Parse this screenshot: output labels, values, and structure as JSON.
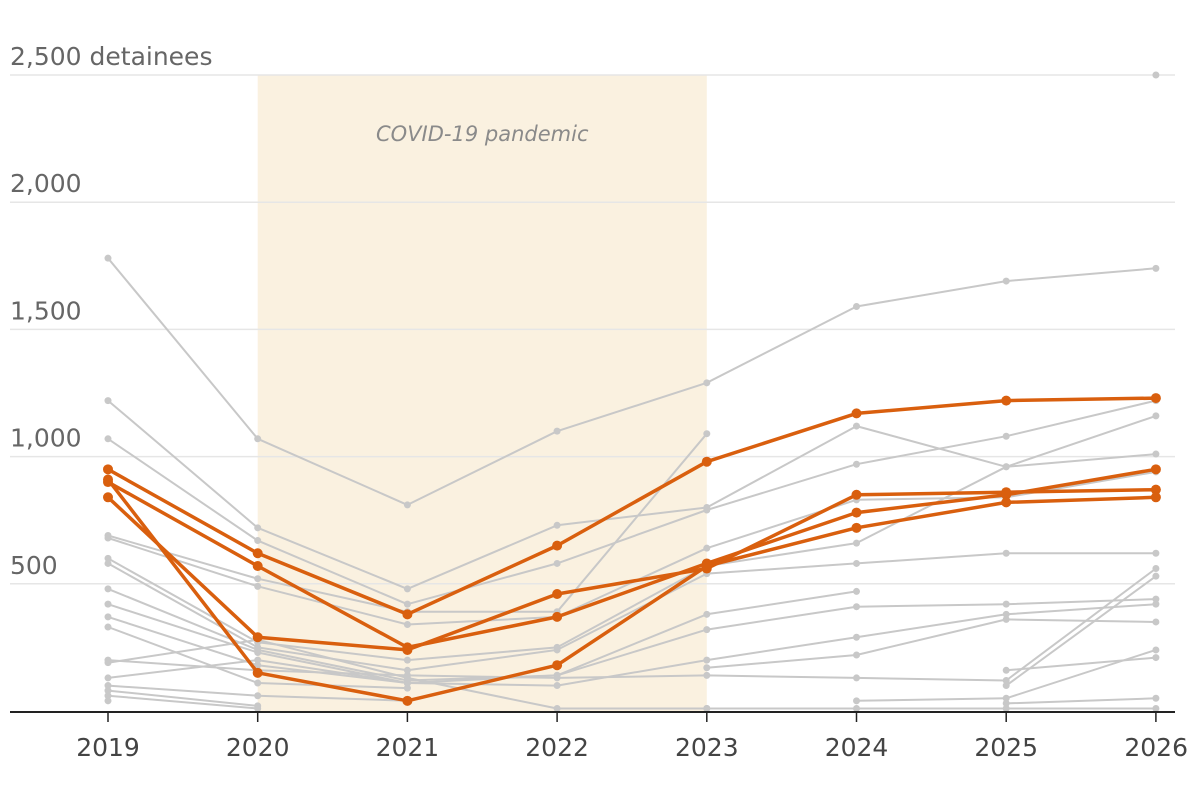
{
  "chart_data": {
    "type": "line",
    "title": "",
    "xlabel": "",
    "ylabel": "",
    "ylim": [
      0,
      2500
    ],
    "y_ticks": [
      {
        "value": 500,
        "label": "500"
      },
      {
        "value": 1000,
        "label": "1,000"
      },
      {
        "value": 1500,
        "label": "1,500"
      },
      {
        "value": 2000,
        "label": "2,000"
      },
      {
        "value": 2500,
        "label": "2,500 detainees"
      }
    ],
    "x": [
      2019,
      2020,
      2021,
      2022,
      2023,
      2024,
      2025,
      2026
    ],
    "x_tick_labels": [
      "2019",
      "2020",
      "2021",
      "2022",
      "2023",
      "2024",
      "2025",
      "2026"
    ],
    "grid": true,
    "shaded_period": {
      "start": 2020,
      "end": 2023,
      "label": "COVID-19 pandemic",
      "color": "#faf1e0"
    },
    "colors": {
      "highlight": "#d95f0e",
      "background_series": "#c8c8c8",
      "axis": "#222222",
      "grid": "#e6e6e6"
    },
    "series": [
      {
        "highlight": false,
        "values": [
          1780,
          1070,
          810,
          1100,
          1290,
          1590,
          1690,
          1740
        ]
      },
      {
        "highlight": false,
        "values": [
          1220,
          720,
          480,
          730,
          800,
          1120,
          960,
          1010
        ]
      },
      {
        "highlight": false,
        "values": [
          1070,
          670,
          420,
          580,
          790,
          970,
          1080,
          1220
        ]
      },
      {
        "highlight": false,
        "values": [
          690,
          520,
          390,
          390,
          1090,
          null,
          null,
          null
        ]
      },
      {
        "highlight": false,
        "values": [
          680,
          490,
          340,
          370,
          640,
          830,
          840,
          940
        ]
      },
      {
        "highlight": false,
        "values": [
          600,
          270,
          200,
          250,
          570,
          660,
          960,
          1160
        ]
      },
      {
        "highlight": false,
        "values": [
          580,
          250,
          160,
          240,
          540,
          580,
          620,
          620
        ]
      },
      {
        "highlight": false,
        "values": [
          480,
          240,
          120,
          140,
          380,
          470,
          null,
          null
        ]
      },
      {
        "highlight": false,
        "values": [
          420,
          230,
          110,
          140,
          320,
          410,
          420,
          440
        ]
      },
      {
        "highlight": false,
        "values": [
          370,
          180,
          110,
          100,
          200,
          290,
          380,
          420
        ]
      },
      {
        "highlight": false,
        "values": [
          330,
          110,
          90,
          null,
          170,
          220,
          360,
          350
        ]
      },
      {
        "highlight": false,
        "values": [
          200,
          160,
          140,
          130,
          140,
          130,
          120,
          560
        ]
      },
      {
        "highlight": false,
        "values": [
          190,
          280,
          130,
          10,
          10,
          null,
          100,
          530
        ]
      },
      {
        "highlight": false,
        "values": [
          130,
          200,
          110,
          null,
          null,
          null,
          160,
          210
        ]
      },
      {
        "highlight": false,
        "values": [
          100,
          60,
          40,
          null,
          null,
          40,
          50,
          240
        ]
      },
      {
        "highlight": false,
        "values": [
          80,
          20,
          null,
          null,
          null,
          null,
          30,
          50
        ]
      },
      {
        "highlight": false,
        "values": [
          60,
          10,
          null,
          null,
          10,
          10,
          10,
          10
        ]
      },
      {
        "highlight": false,
        "values": [
          40,
          null,
          null,
          null,
          null,
          null,
          null,
          2500
        ]
      },
      {
        "highlight": true,
        "values": [
          950,
          620,
          380,
          650,
          980,
          1170,
          1220,
          1230
        ]
      },
      {
        "highlight": true,
        "values": [
          900,
          570,
          250,
          370,
          580,
          780,
          850,
          950
        ]
      },
      {
        "highlight": true,
        "values": [
          840,
          290,
          240,
          460,
          560,
          850,
          860,
          870
        ]
      },
      {
        "highlight": true,
        "values": [
          910,
          150,
          40,
          180,
          570,
          720,
          820,
          840
        ]
      }
    ]
  }
}
